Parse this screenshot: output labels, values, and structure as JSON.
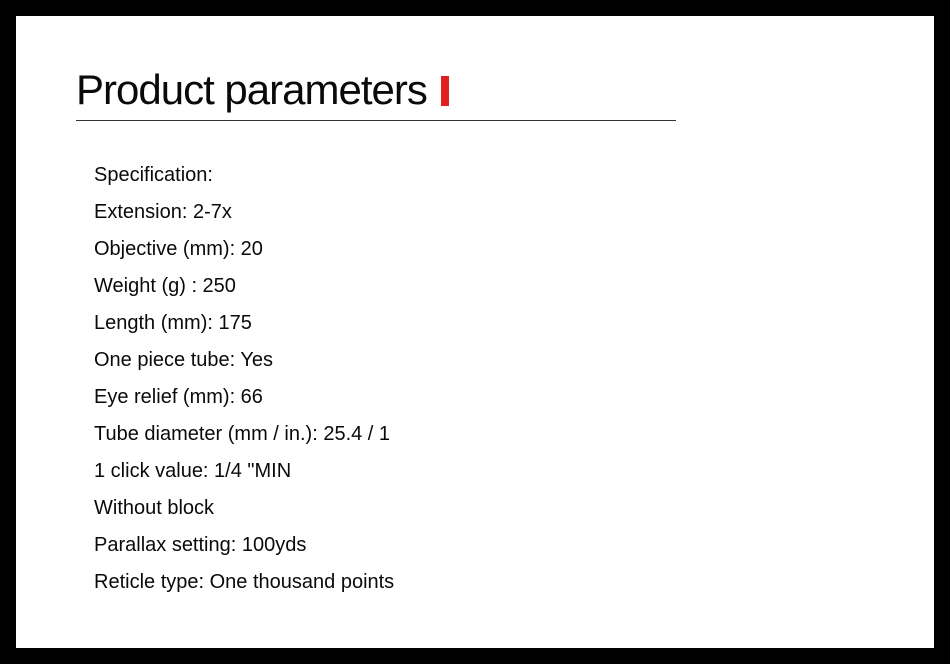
{
  "title": "Product parameters",
  "accent_color": "#e02020",
  "border_color": "#333333",
  "text_color": "#0a0a0a",
  "background_outer": "#000000",
  "background_inner": "#ffffff",
  "title_fontsize": 42,
  "item_fontsize": 20,
  "item_lineheight": 37,
  "specs": [
    "Specification:",
    "Extension: 2-7x",
    "Objective (mm): 20",
    "Weight (g) : 250",
    "Length (mm): 175",
    "One piece tube: Yes",
    "Eye relief (mm): 66",
    "Tube diameter (mm / in.): 25.4 / 1",
    "1 click value: 1/4 \"MIN",
    "Without block",
    "Parallax setting: 100yds",
    "Reticle type: One thousand points"
  ]
}
